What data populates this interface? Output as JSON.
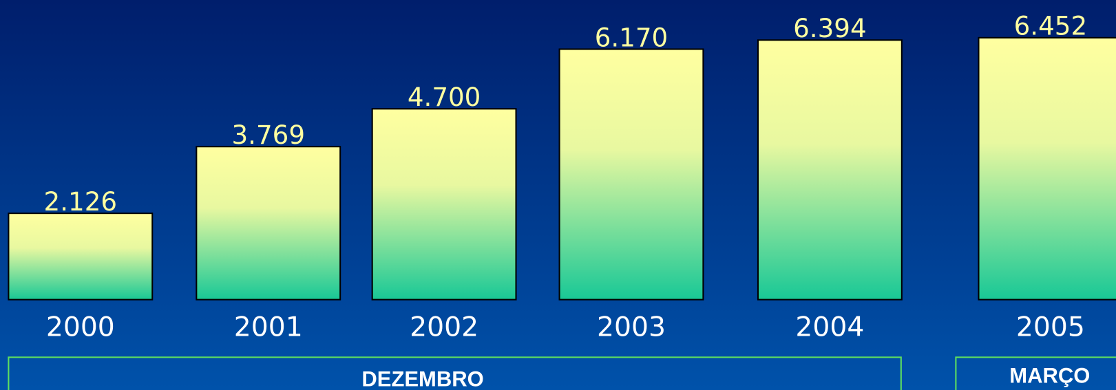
{
  "chart_data": {
    "type": "bar",
    "categories": [
      "2000",
      "2001",
      "2002",
      "2003",
      "2004",
      "2005"
    ],
    "values": [
      2126,
      3769,
      4700,
      6170,
      6394,
      6452
    ],
    "value_labels": [
      "2.126",
      "3.769",
      "4.700",
      "6.170",
      "6.394",
      "6.452"
    ],
    "groups": [
      {
        "label": "DEZEMBRO"
      },
      {
        "label": "MARÇO"
      }
    ]
  }
}
